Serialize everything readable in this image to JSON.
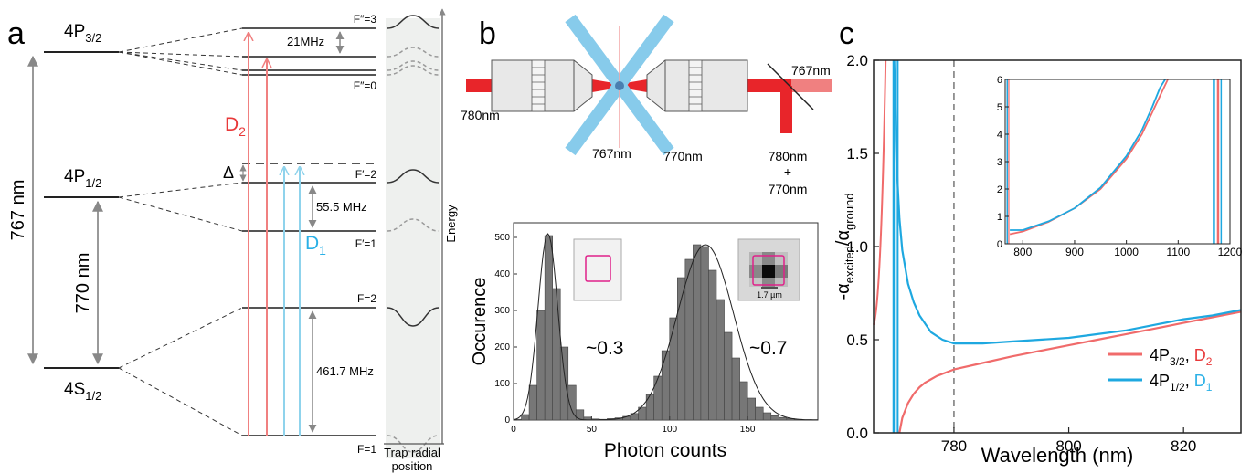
{
  "panel_a": {
    "label": "a",
    "levels": {
      "p32": {
        "main": "4P",
        "sub": "3/2"
      },
      "p12": {
        "main": "4P",
        "sub": "1/2"
      },
      "s12": {
        "main": "4S",
        "sub": "1/2"
      }
    },
    "wavelengths": {
      "767": "767 nm",
      "770": "770 nm"
    },
    "hyperfine": {
      "fpp3": "F″=3",
      "fpp0": "F″=0",
      "fp2": "F′=2",
      "fp1": "F′=1",
      "f2": "F=2",
      "f1": "F=1"
    },
    "splittings": {
      "p32": "21MHz",
      "p12": "55.5 MHz",
      "s12": "461.7 MHz"
    },
    "detuning": "Δ",
    "transitions": {
      "d2": {
        "main": "D",
        "sub": "2"
      },
      "d1": {
        "main": "D",
        "sub": "1"
      }
    },
    "axes": {
      "energy": "Energy",
      "trap_line1": "Trap radial",
      "trap_line2": "position"
    },
    "colors": {
      "d2": "#f08080",
      "d1": "#8fd3ec",
      "d2_label": "#e8393a",
      "d1_label": "#2ab0e6"
    }
  },
  "panel_b": {
    "label": "b",
    "beams": {
      "in780": "780nm",
      "cross767": "767nm",
      "cross770": "770nm",
      "out767": "767nm",
      "out_line1": "780nm",
      "out_plus": "+",
      "out_line2": "770nm"
    },
    "histogram": {
      "xlabel": "Photon counts",
      "ylabel": "Occurence",
      "xticks": [
        "0",
        "50",
        "100",
        "150"
      ],
      "yticks": [
        "0",
        "100",
        "200",
        "300",
        "400",
        "500"
      ],
      "peak1_label": "~0.3",
      "peak2_label": "~0.7",
      "scale_label": "1.7 µm"
    },
    "colors": {
      "beam_red": "#e8252a",
      "beam_blue": "#87cbeb",
      "bar": "#777777",
      "roi": "#e0218a"
    }
  },
  "panel_c": {
    "label": "c",
    "xlabel": "Wavelength (nm)",
    "ylabel": {
      "pre": "-α",
      "sub1": "excited",
      "mid": "/α",
      "sub2": "ground"
    },
    "xticks": [
      "780",
      "800",
      "820"
    ],
    "yticks": [
      "0.0",
      "0.5",
      "1.0",
      "1.5",
      "2.0"
    ],
    "inset_xticks": [
      "800",
      "900",
      "1000",
      "1100",
      "1200"
    ],
    "inset_yticks": [
      "0",
      "1",
      "2",
      "3",
      "4",
      "5",
      "6"
    ],
    "legend": [
      {
        "main": "4P",
        "sub": "3/2",
        "sep": ", ",
        "tmain": "D",
        "tsub": "2",
        "color": "#f06b6b",
        "tcolor": "#e8393a"
      },
      {
        "main": "4P",
        "sub": "1/2",
        "sep": ", ",
        "tmain": "D",
        "tsub": "1",
        "color": "#1ea8e0",
        "tcolor": "#2ab0e6"
      }
    ]
  },
  "chart_data": [
    {
      "type": "bar",
      "xlabel": "Photon counts",
      "ylabel": "Occurence",
      "xlim": [
        0,
        195
      ],
      "ylim": [
        0,
        540
      ],
      "bin_width": 5,
      "bin_starts": [
        0,
        5,
        10,
        15,
        20,
        25,
        30,
        35,
        40,
        45,
        50,
        55,
        60,
        65,
        70,
        75,
        80,
        85,
        90,
        95,
        100,
        105,
        110,
        115,
        120,
        125,
        130,
        135,
        140,
        145,
        150,
        155,
        160,
        165,
        170,
        175,
        180,
        185,
        190
      ],
      "values": [
        2,
        15,
        95,
        300,
        505,
        360,
        200,
        95,
        28,
        8,
        3,
        2,
        4,
        6,
        10,
        18,
        35,
        70,
        120,
        190,
        280,
        390,
        440,
        480,
        475,
        410,
        330,
        240,
        170,
        105,
        60,
        35,
        20,
        12,
        7,
        4,
        2,
        1,
        1
      ],
      "annotations": [
        "~0.3",
        "~0.7"
      ]
    },
    {
      "type": "line",
      "xlabel": "Wavelength (nm)",
      "ylabel": "-α_excited/α_ground",
      "xlim": [
        766,
        830
      ],
      "ylim": [
        0,
        2
      ],
      "vline_x": 780,
      "series": [
        {
          "name": "4P3/2, D2",
          "x": [
            770.5,
            771,
            772,
            773,
            774,
            775,
            777,
            780,
            785,
            790,
            795,
            800,
            805,
            810,
            815,
            820,
            825,
            830
          ],
          "y": [
            0.0,
            0.08,
            0.16,
            0.21,
            0.245,
            0.27,
            0.305,
            0.34,
            0.375,
            0.41,
            0.44,
            0.47,
            0.5,
            0.53,
            0.56,
            0.59,
            0.62,
            0.65
          ]
        },
        {
          "name": "4P1/2, D1",
          "x": [
            769.6,
            769.8,
            770,
            770.5,
            771,
            772,
            773,
            774,
            776,
            778,
            780,
            782,
            785,
            790,
            795,
            800,
            805,
            810,
            815,
            820,
            825,
            830
          ],
          "y": [
            2.0,
            1.75,
            1.45,
            1.15,
            0.98,
            0.8,
            0.7,
            0.63,
            0.54,
            0.5,
            0.48,
            0.48,
            0.48,
            0.49,
            0.5,
            0.51,
            0.53,
            0.55,
            0.58,
            0.61,
            0.63,
            0.66
          ]
        }
      ]
    },
    {
      "type": "line",
      "title": "inset",
      "xlim": [
        766,
        1200
      ],
      "ylim": [
        0,
        6
      ],
      "series": [
        {
          "name": "4P3/2, D2",
          "x": [
            775,
            800,
            850,
            900,
            950,
            1000,
            1030,
            1050,
            1070,
            1080
          ],
          "y": [
            0.35,
            0.45,
            0.8,
            1.3,
            2.0,
            3.1,
            4.0,
            4.8,
            5.6,
            6.0
          ]
        },
        {
          "name": "4P1/2, D1",
          "x": [
            775,
            800,
            850,
            900,
            950,
            1000,
            1030,
            1050,
            1065,
            1075
          ],
          "y": [
            0.5,
            0.5,
            0.82,
            1.3,
            2.05,
            3.2,
            4.15,
            5.0,
            5.7,
            6.0
          ]
        }
      ]
    }
  ]
}
